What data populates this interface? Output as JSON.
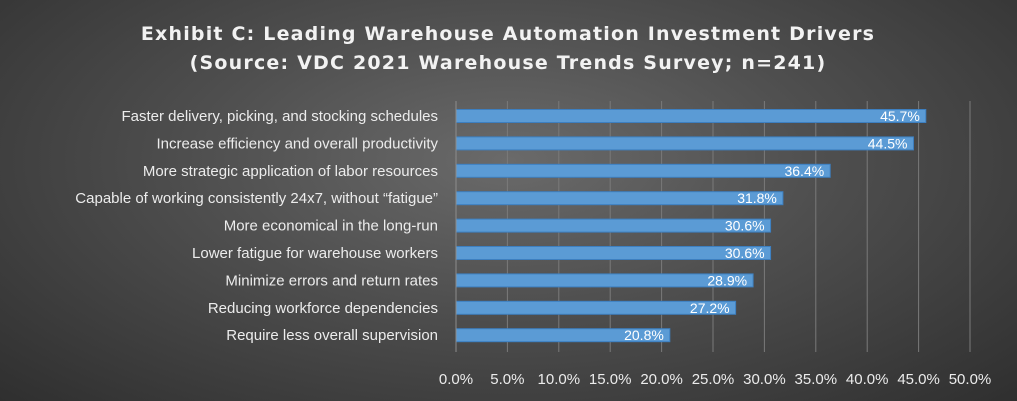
{
  "chart_data": {
    "type": "bar",
    "orientation": "horizontal",
    "title": "Exhibit C: Leading Warehouse Automation Investment Drivers",
    "subtitle": "(Source: VDC 2021 Warehouse Trends Survey; n=241)",
    "categories": [
      "Faster delivery, picking, and stocking schedules",
      "Increase efficiency and overall productivity",
      "More strategic application of labor resources",
      "Capable of working consistently 24x7, without “fatigue”",
      "More economical in the long-run",
      "Lower fatigue for warehouse workers",
      "Minimize errors and return rates",
      "Reducing workforce dependencies",
      "Require less overall supervision"
    ],
    "values": [
      45.7,
      44.5,
      36.4,
      31.8,
      30.6,
      30.6,
      28.9,
      27.2,
      20.8
    ],
    "data_labels": [
      "45.7%",
      "44.5%",
      "36.4%",
      "31.8%",
      "30.6%",
      "30.6%",
      "28.9%",
      "27.2%",
      "20.8%"
    ],
    "xlim": [
      0,
      50
    ],
    "x_ticks": [
      0,
      5,
      10,
      15,
      20,
      25,
      30,
      35,
      40,
      45,
      50
    ],
    "x_tick_labels": [
      "0.0%",
      "5.0%",
      "10.0%",
      "15.0%",
      "20.0%",
      "25.0%",
      "30.0%",
      "35.0%",
      "40.0%",
      "45.0%",
      "50.0%"
    ],
    "grid": true,
    "legend": "none",
    "colors": {
      "bar_fill": "#5b9bd5",
      "bar_edge": "#3d7fc0",
      "text": "#ececec",
      "background": "#4a4a4a"
    }
  }
}
